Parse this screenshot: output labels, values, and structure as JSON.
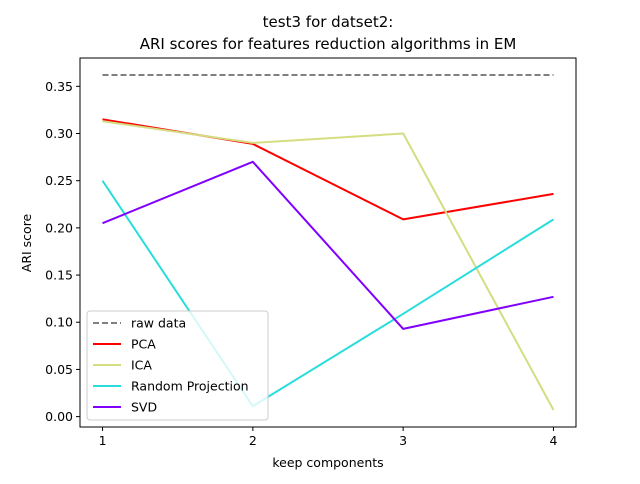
{
  "chart_data": {
    "type": "line",
    "title_line1": "test3 for datset2:",
    "title_line2": "ARI scores for features reduction algorithms in EM",
    "xlabel": "keep components",
    "ylabel": "ARI score",
    "x": [
      1,
      2,
      3,
      4
    ],
    "xticks": [
      "1",
      "2",
      "3",
      "4"
    ],
    "yticks": [
      "0.00",
      "0.05",
      "0.10",
      "0.15",
      "0.20",
      "0.25",
      "0.30",
      "0.35"
    ],
    "xlim": [
      0.85,
      4.15
    ],
    "ylim": [
      -0.011,
      0.38
    ],
    "grid": false,
    "legend_position": "lower-left",
    "series": [
      {
        "name": "raw data",
        "values": [
          0.362,
          0.362,
          0.362,
          0.362
        ],
        "color": "#000000",
        "style": "dashed"
      },
      {
        "name": "PCA",
        "values": [
          0.315,
          0.289,
          0.209,
          0.236
        ],
        "color": "#ff0000",
        "style": "solid"
      },
      {
        "name": "ICA",
        "values": [
          0.313,
          0.29,
          0.3,
          0.007
        ],
        "color": "#d4dd80",
        "style": "solid"
      },
      {
        "name": "Random Projection",
        "values": [
          0.25,
          0.011,
          0.109,
          0.209
        ],
        "color": "#2adddd",
        "style": "solid"
      },
      {
        "name": "SVD",
        "values": [
          0.205,
          0.27,
          0.093,
          0.127
        ],
        "color": "#8000ff",
        "style": "solid"
      }
    ]
  }
}
